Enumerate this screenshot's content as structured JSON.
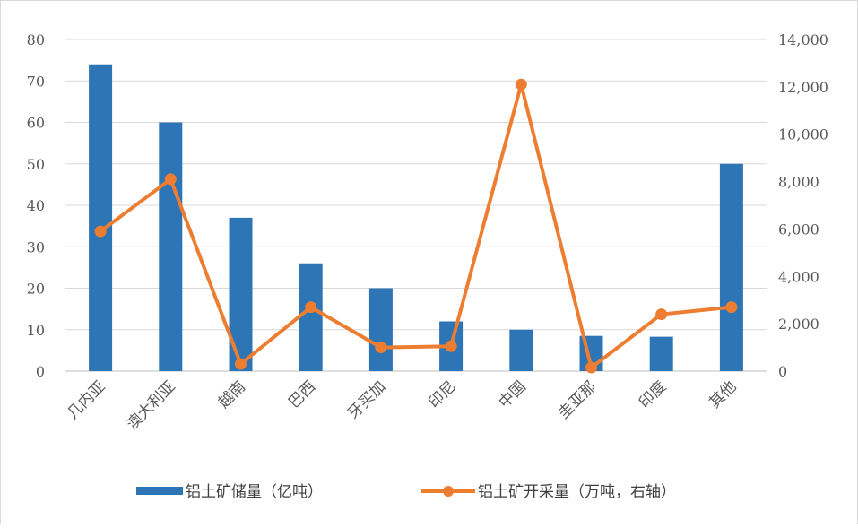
{
  "chart_data": {
    "type": "bar+line",
    "categories": [
      "几内亚",
      "澳大利亚",
      "越南",
      "巴西",
      "牙买加",
      "印尼",
      "中国",
      "圭亚那",
      "印度",
      "其他"
    ],
    "series": [
      {
        "name": "铝土矿储量（亿吨）",
        "type": "bar",
        "axis": "left",
        "color": "#2E75B6",
        "values": [
          74,
          60,
          37,
          26,
          20,
          12,
          10,
          8.5,
          8.3,
          50
        ]
      },
      {
        "name": "铝土矿开采量（万吨，右轴）",
        "type": "line",
        "axis": "right",
        "color": "#ED7D31",
        "values": [
          5900,
          8100,
          300,
          2700,
          1000,
          1050,
          12100,
          150,
          2400,
          2700
        ]
      }
    ],
    "left_axis": {
      "ylim": [
        0,
        80
      ],
      "ticks": [
        "0",
        "10",
        "20",
        "30",
        "40",
        "50",
        "60",
        "70",
        "80"
      ]
    },
    "right_axis": {
      "ylim": [
        0,
        14000
      ],
      "ticks": [
        "0",
        "2,000",
        "4,000",
        "6,000",
        "8,000",
        "10,000",
        "12,000",
        "14,000"
      ]
    },
    "grid": true,
    "legend_position": "bottom"
  }
}
